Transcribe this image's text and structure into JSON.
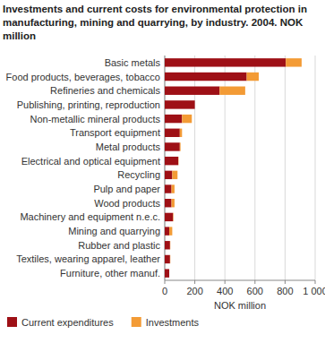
{
  "chart_data": {
    "type": "bar",
    "orientation": "horizontal",
    "stacked": true,
    "title": "Investments and current costs for environmental protection in manufacturing, mining and quarrying, by industry. 2004. NOK million",
    "x_label": "NOK million",
    "categories": [
      "Basic metals",
      "Food products, beverages, tobacco",
      "Refineries and chemicals",
      "Publishing, printing, reproduction",
      "Non-metallic mineral products",
      "Transport equipment",
      "Metal products",
      "Electrical and optical equipment",
      "Recycling",
      "Pulp and paper",
      "Wood products",
      "Machinery and equipment n.e.c.",
      "Mining and quarrying",
      "Rubber and plastic",
      "Textiles, wearing apparel, leather",
      "Furniture, other manuf."
    ],
    "series": [
      {
        "name": "Current expenditures",
        "color": "#9e1016",
        "values": [
          805,
          545,
          365,
          200,
          115,
          100,
          100,
          90,
          50,
          45,
          45,
          55,
          30,
          35,
          35,
          30
        ]
      },
      {
        "name": "Investments",
        "color": "#f39b35",
        "values": [
          105,
          80,
          170,
          0,
          65,
          15,
          5,
          2,
          35,
          20,
          20,
          3,
          20,
          2,
          2,
          0
        ]
      }
    ],
    "xlim": [
      0,
      1000
    ],
    "xticks": [
      0,
      200,
      400,
      600,
      800,
      {
        "value": 1000,
        "label": "1 000"
      }
    ],
    "grid": true,
    "legend": "bottom"
  }
}
